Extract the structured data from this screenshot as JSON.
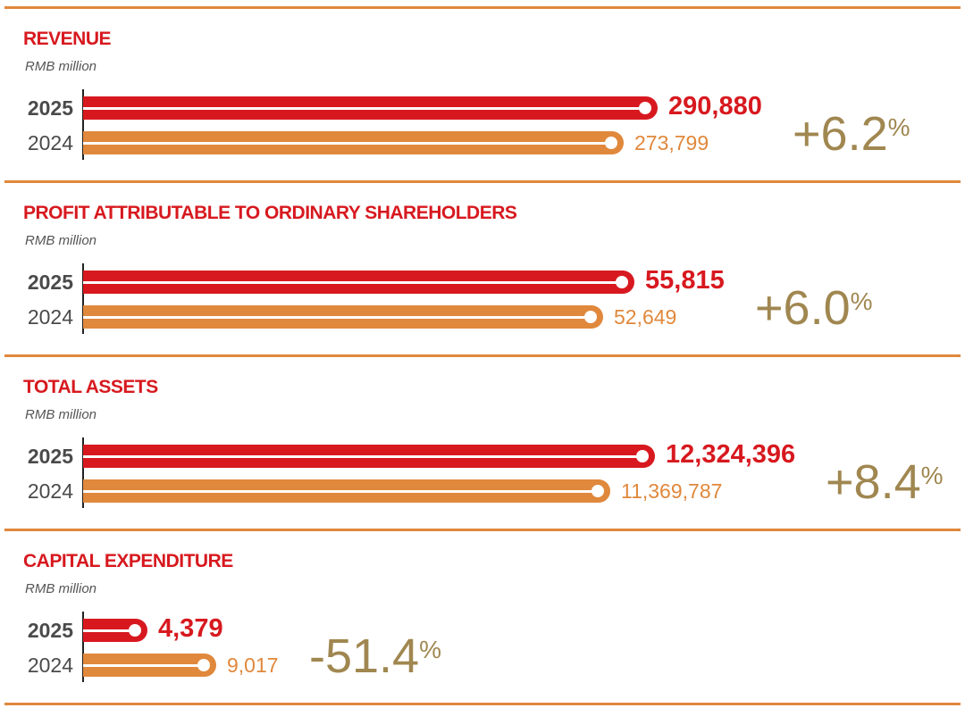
{
  "colors": {
    "current": "#d7191f",
    "previous": "#e0883c",
    "change": "#a08750",
    "rule": "#e0883c"
  },
  "chart_data": [
    {
      "type": "bar",
      "title": "REVENUE",
      "unit": "RMB million",
      "categories": [
        "2025",
        "2024"
      ],
      "values": [
        290880,
        273799
      ],
      "value_labels": [
        "290,880",
        "273,799"
      ],
      "change": "+6.2",
      "change_unit": "%"
    },
    {
      "type": "bar",
      "title": "PROFIT ATTRIBUTABLE TO ORDINARY SHAREHOLDERS",
      "unit": "RMB million",
      "categories": [
        "2025",
        "2024"
      ],
      "values": [
        55815,
        52649
      ],
      "value_labels": [
        "55,815",
        "52,649"
      ],
      "change": "+6.0",
      "change_unit": "%"
    },
    {
      "type": "bar",
      "title": "TOTAL ASSETS",
      "unit": "RMB million",
      "categories": [
        "2025",
        "2024"
      ],
      "values": [
        12324396,
        11369787
      ],
      "value_labels": [
        "12,324,396",
        "11,369,787"
      ],
      "change": "+8.4",
      "change_unit": "%"
    },
    {
      "type": "bar",
      "title": "CAPITAL EXPENDITURE",
      "unit": "RMB million",
      "categories": [
        "2025",
        "2024"
      ],
      "values": [
        4379,
        9017
      ],
      "value_labels": [
        "4,379",
        "9,017"
      ],
      "change": "-51.4",
      "change_unit": "%"
    }
  ]
}
